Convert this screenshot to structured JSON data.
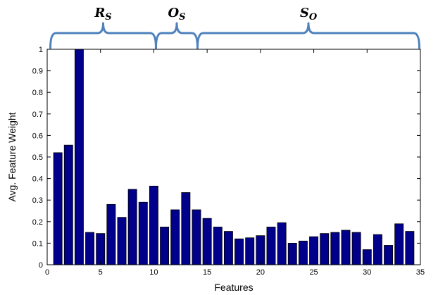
{
  "chart_data": {
    "type": "bar",
    "title": "",
    "xlabel": "Features",
    "ylabel": "Avg. Feature Weight",
    "xlim": [
      0,
      35
    ],
    "ylim": [
      0,
      1
    ],
    "x_ticks": [
      0,
      5,
      10,
      15,
      20,
      25,
      30,
      35
    ],
    "y_ticks": [
      0,
      0.1,
      0.2,
      0.3,
      0.4,
      0.5,
      0.6,
      0.7,
      0.8,
      0.9,
      1
    ],
    "grid": false,
    "legend": "none",
    "bar_color": "#00008b",
    "bar_edge_color": "#000000",
    "bracket_color": "#4f81bd",
    "x": [
      1,
      2,
      3,
      4,
      5,
      6,
      7,
      8,
      9,
      10,
      11,
      12,
      13,
      14,
      15,
      16,
      17,
      18,
      19,
      20,
      21,
      22,
      23,
      24,
      25,
      26,
      27,
      28,
      29,
      30,
      31,
      32,
      33,
      34
    ],
    "values": [
      0.52,
      0.555,
      1.0,
      0.15,
      0.145,
      0.28,
      0.22,
      0.35,
      0.29,
      0.365,
      0.175,
      0.255,
      0.335,
      0.255,
      0.215,
      0.175,
      0.155,
      0.12,
      0.125,
      0.135,
      0.175,
      0.195,
      0.1,
      0.11,
      0.13,
      0.145,
      0.15,
      0.16,
      0.15,
      0.07,
      0.14,
      0.09,
      0.19,
      0.155
    ],
    "groups": [
      {
        "main": "R",
        "sub": "S",
        "from": 0.3,
        "to": 10.2
      },
      {
        "main": "O",
        "sub": "S",
        "from": 10.2,
        "to": 14.1
      },
      {
        "main": "S",
        "sub": "O",
        "from": 14.1,
        "to": 34.9
      }
    ]
  }
}
